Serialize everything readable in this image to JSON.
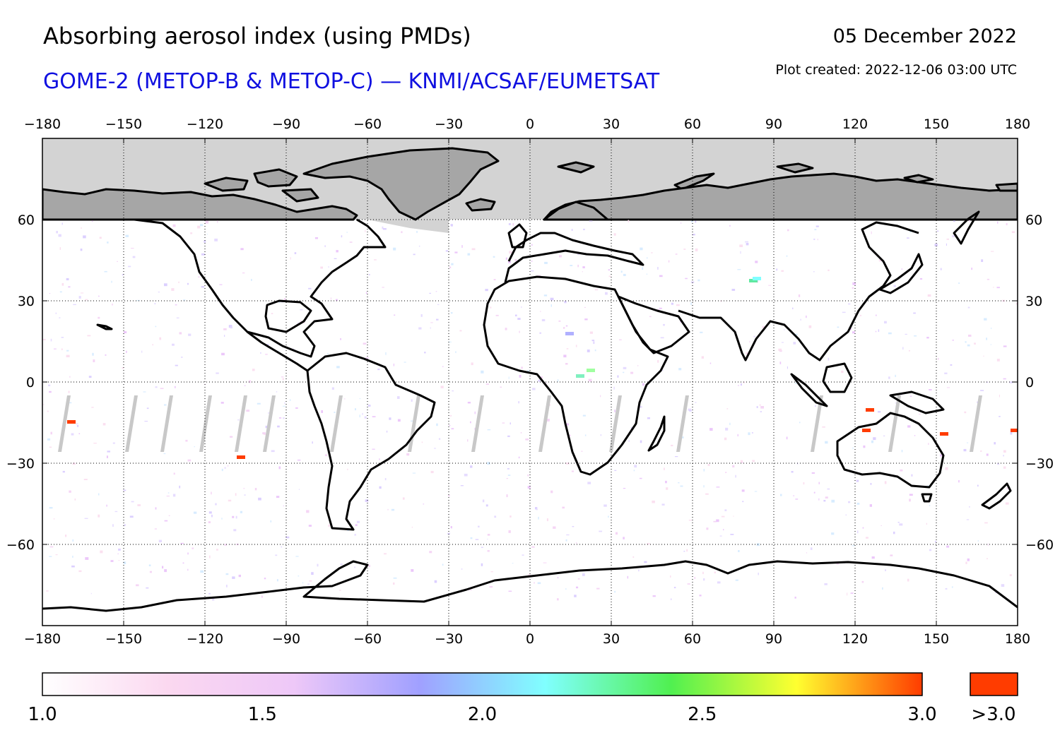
{
  "title": "Absorbing aerosol index (using PMDs)",
  "subtitle": "GOME-2 (METOP-B & METOP-C) — KNMI/ACSAF/EUMETSAT",
  "date": "05 December 2022",
  "plot_created": "Plot created: 2022-12-06 03:00 UTC",
  "colors": {
    "subtitle": "#1010e0",
    "polar_night": "#d3d3d3",
    "land_dark": "#a6a6a6",
    "coast": "#000000",
    "no_data": "#c8c8c8",
    "over_range": "#ff3c00"
  },
  "map": {
    "projection": "plate-carree",
    "lon_range": [
      -180,
      180
    ],
    "lat_range": [
      -90,
      90
    ],
    "lon_ticks": [
      -180,
      -150,
      -120,
      -90,
      -60,
      -30,
      0,
      30,
      60,
      90,
      120,
      150,
      180
    ],
    "lat_ticks": [
      60,
      30,
      0,
      -30,
      -60
    ],
    "lon_tick_labels": [
      "−180",
      "−150",
      "−120",
      "−90",
      "−60",
      "−30",
      "0",
      "30",
      "60",
      "90",
      "120",
      "150",
      "180"
    ],
    "lat_tick_labels": [
      "60",
      "30",
      "0",
      "−30",
      "−60"
    ],
    "grid": "dotted",
    "polar_night_above_lat": 60
  },
  "colorbar": {
    "range": [
      1.0,
      3.0
    ],
    "tick_values": [
      1.0,
      1.5,
      2.0,
      2.5,
      3.0
    ],
    "tick_labels": [
      "1.0",
      "1.5",
      "2.0",
      "2.5",
      "3.0"
    ],
    "over_label": ">3.0",
    "stops": [
      "#ffffff",
      "#fbd8f0",
      "#eec8f8",
      "#a0a0ff",
      "#80ffff",
      "#50f050",
      "#ffff30",
      "#ff3c00"
    ]
  }
}
